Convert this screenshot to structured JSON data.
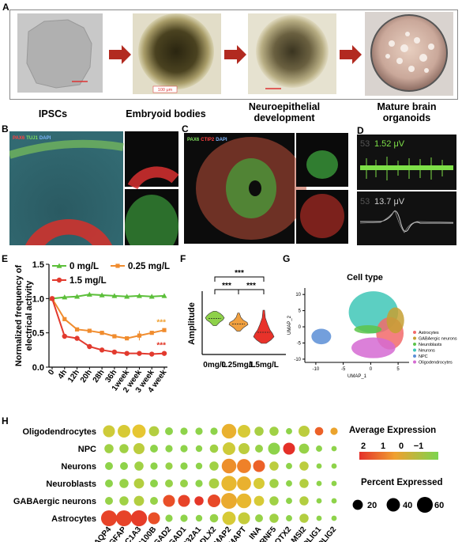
{
  "panel_a": {
    "label": "A",
    "stages": [
      "IPSCs",
      "Embryoid bodies",
      "Neuroepithelial development",
      "Mature brain organoids"
    ],
    "scale_bars": [
      "100 μm"
    ]
  },
  "panel_b": {
    "label": "B",
    "stain_pax6": "PAX6",
    "stain_tuj1": "TUJ1",
    "stain_dapi": "DAPI"
  },
  "panel_c": {
    "label": "C",
    "stain_pax6": "PAX6",
    "stain_ctip2": "CTIP2",
    "stain_dapi": "DAPI"
  },
  "panel_d": {
    "label": "D",
    "trace1_channel": "53",
    "trace1_value": "1.52 μV",
    "trace2_channel": "53",
    "trace2_value": "13.7 μV"
  },
  "panel_e": {
    "label": "E"
  },
  "panel_f": {
    "label": "F"
  },
  "panel_g": {
    "label": "G"
  },
  "panel_h": {
    "label": "H"
  },
  "colors": {
    "green": "#5cbf3a",
    "orange": "#f08c2e",
    "red": "#e23a2e",
    "sig_orange": "#f0a030",
    "sig_red": "#e03020"
  },
  "chart_data": [
    {
      "type": "line",
      "panel": "E",
      "ylabel": "Normalized frequency of electrical activity",
      "categories": [
        "0",
        "4h",
        "12h",
        "20h",
        "28h",
        "36h",
        "1week",
        "2 week",
        "3 week",
        "4 week"
      ],
      "ylim": [
        0.0,
        1.5
      ],
      "yticks": [
        "0.0",
        "0.5",
        "1.0",
        "1.5"
      ],
      "series": [
        {
          "name": "0 mg/L",
          "color": "#5cbf3a",
          "marker": "triangle",
          "values": [
            1.0,
            1.02,
            1.03,
            1.06,
            1.05,
            1.04,
            1.03,
            1.04,
            1.03,
            1.04
          ]
        },
        {
          "name": "0.25 mg/L",
          "color": "#f08c2e",
          "marker": "square",
          "values": [
            1.0,
            0.7,
            0.55,
            0.53,
            0.5,
            0.45,
            0.42,
            0.46,
            0.5,
            0.54
          ]
        },
        {
          "name": "1.5 mg/L",
          "color": "#e23a2e",
          "marker": "circle",
          "values": [
            1.0,
            0.45,
            0.42,
            0.3,
            0.25,
            0.22,
            0.2,
            0.2,
            0.19,
            0.2
          ]
        }
      ],
      "annotations": [
        "***",
        "***"
      ],
      "legend": "top"
    },
    {
      "type": "violin",
      "panel": "F",
      "ylabel": "Amplitude",
      "categories": [
        "0mg/L",
        "0.25mg/L",
        "1.5mg/L"
      ],
      "series": [
        {
          "name": "0mg/L",
          "color": "#8ed14a",
          "median": 0.95
        },
        {
          "name": "0.25mg/L",
          "color": "#f0a040",
          "median": 0.85
        },
        {
          "name": "1.5mg/L",
          "color": "#e8322a",
          "median": 0.7
        }
      ],
      "significance": [
        "***",
        "***",
        "***"
      ]
    },
    {
      "type": "scatter",
      "panel": "G",
      "title": "Cell type",
      "xlabel": "UMAP_1",
      "ylabel": "UMAP_2",
      "xticks": [
        "-10",
        "-5",
        "0",
        "5"
      ],
      "yticks": [
        "-10",
        "-5",
        "0",
        "5",
        "10"
      ],
      "xlim": [
        -12,
        7
      ],
      "ylim": [
        -11,
        12
      ],
      "legend_entries": [
        {
          "name": "Astrocytes",
          "color": "#f26a6a"
        },
        {
          "name": "GABAergic neurons",
          "color": "#c6a033"
        },
        {
          "name": "Neuroblasts",
          "color": "#5cc44a"
        },
        {
          "name": "Neurons",
          "color": "#3fc7b7"
        },
        {
          "name": "NPC",
          "color": "#5b8ed6"
        },
        {
          "name": "Oligodendrocytes",
          "color": "#d56ad2"
        }
      ]
    },
    {
      "type": "dotplot",
      "panel": "H",
      "rows": [
        "Oligodendrocytes",
        "NPC",
        "Neurons",
        "Neuroblasts",
        "GABAergic neurons",
        "Astrocytes"
      ],
      "columns": [
        "AQP4",
        "GFAP",
        "SLC1A3",
        "S100B",
        "GAD2",
        "GAD1",
        "SLC32A1",
        "DLX2",
        "MAP2",
        "MAPT",
        "INA",
        "RNF5",
        "OTX2",
        "MSI2",
        "OLIG1",
        "OLIG2"
      ],
      "legend_expression_title": "Average Expression",
      "legend_expression_ticks": [
        "2",
        "1",
        "0",
        "−1"
      ],
      "legend_percent_title": "Percent Expressed",
      "legend_percent_ticks": [
        "20",
        "40",
        "60"
      ],
      "cells": [
        [
          [
            -0.3,
            30
          ],
          [
            -0.2,
            35
          ],
          [
            0.0,
            40
          ],
          [
            -0.6,
            20
          ],
          [
            -1.0,
            10
          ],
          [
            -1.0,
            8
          ],
          [
            -1.0,
            8
          ],
          [
            -1.0,
            8
          ],
          [
            0.3,
            50
          ],
          [
            -0.2,
            35
          ],
          [
            -0.7,
            15
          ],
          [
            -0.8,
            15
          ],
          [
            -1.0,
            5
          ],
          [
            -0.5,
            25
          ],
          [
            1.5,
            12
          ],
          [
            0.5,
            8
          ]
        ],
        [
          [
            -0.8,
            15
          ],
          [
            -0.8,
            15
          ],
          [
            -0.5,
            25
          ],
          [
            -1.0,
            10
          ],
          [
            -1.0,
            8
          ],
          [
            -1.0,
            8
          ],
          [
            -1.0,
            6
          ],
          [
            -0.8,
            12
          ],
          [
            -0.3,
            35
          ],
          [
            -0.5,
            25
          ],
          [
            -0.9,
            10
          ],
          [
            -1.0,
            30
          ],
          [
            2.3,
            30
          ],
          [
            -0.9,
            20
          ],
          [
            -1.0,
            5
          ],
          [
            -1.0,
            3
          ]
        ],
        [
          [
            -1.0,
            10
          ],
          [
            -1.0,
            10
          ],
          [
            -0.8,
            15
          ],
          [
            -1.0,
            8
          ],
          [
            -0.9,
            8
          ],
          [
            -1.0,
            8
          ],
          [
            -1.0,
            6
          ],
          [
            -0.8,
            15
          ],
          [
            0.8,
            50
          ],
          [
            1.0,
            45
          ],
          [
            1.5,
            30
          ],
          [
            -0.5,
            15
          ],
          [
            -1.0,
            5
          ],
          [
            -0.5,
            15
          ],
          [
            -1.0,
            3
          ],
          [
            -1.0,
            3
          ]
        ],
        [
          [
            -1.0,
            10
          ],
          [
            -0.9,
            15
          ],
          [
            -0.6,
            20
          ],
          [
            -1.0,
            10
          ],
          [
            -0.9,
            10
          ],
          [
            -0.9,
            10
          ],
          [
            -1.0,
            8
          ],
          [
            -0.7,
            20
          ],
          [
            0.2,
            55
          ],
          [
            0.3,
            45
          ],
          [
            -0.2,
            25
          ],
          [
            -0.8,
            15
          ],
          [
            -1.0,
            5
          ],
          [
            -0.6,
            15
          ],
          [
            -1.0,
            3
          ],
          [
            -1.0,
            3
          ]
        ],
        [
          [
            -0.9,
            10
          ],
          [
            -0.8,
            15
          ],
          [
            -0.6,
            20
          ],
          [
            -0.9,
            10
          ],
          [
            1.8,
            30
          ],
          [
            2.0,
            30
          ],
          [
            2.2,
            15
          ],
          [
            1.9,
            35
          ],
          [
            0.4,
            60
          ],
          [
            0.2,
            50
          ],
          [
            -0.2,
            20
          ],
          [
            -0.8,
            15
          ],
          [
            -1.0,
            5
          ],
          [
            -0.6,
            15
          ],
          [
            -1.0,
            3
          ],
          [
            -1.0,
            3
          ]
        ],
        [
          [
            2.0,
            60
          ],
          [
            2.0,
            60
          ],
          [
            2.1,
            62
          ],
          [
            1.8,
            30
          ],
          [
            -1.0,
            8
          ],
          [
            -1.0,
            8
          ],
          [
            -1.0,
            6
          ],
          [
            -0.9,
            12
          ],
          [
            -0.2,
            40
          ],
          [
            -0.4,
            30
          ],
          [
            -0.9,
            10
          ],
          [
            -0.8,
            15
          ],
          [
            -1.0,
            5
          ],
          [
            -0.6,
            15
          ],
          [
            -1.0,
            3
          ],
          [
            -1.0,
            3
          ]
        ]
      ]
    }
  ]
}
